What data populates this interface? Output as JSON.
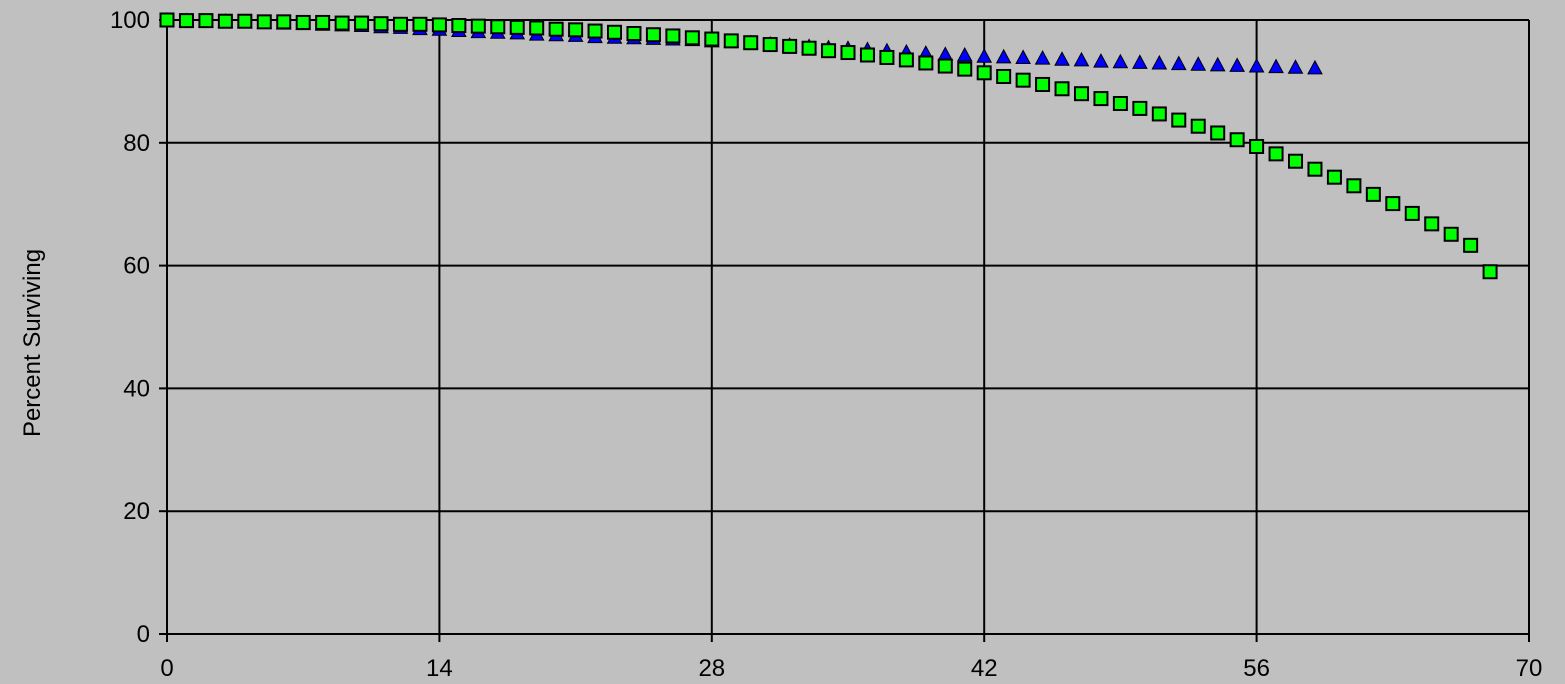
{
  "chart_data": {
    "type": "scatter",
    "title": "",
    "xlabel": "",
    "ylabel": "Percent Surviving",
    "xlim": [
      0,
      70
    ],
    "ylim": [
      0,
      100
    ],
    "x_ticks": [
      "0",
      "14",
      "28",
      "42",
      "56",
      "70"
    ],
    "y_ticks": [
      "0",
      "20",
      "40",
      "60",
      "80",
      "100"
    ],
    "grid": true,
    "background": "#c0c0c0",
    "series": [
      {
        "marker": "triangle",
        "color": "#0000ff",
        "x": [
          0,
          1,
          2,
          3,
          4,
          5,
          6,
          7,
          8,
          9,
          10,
          11,
          12,
          13,
          14,
          15,
          16,
          17,
          18,
          19,
          20,
          21,
          22,
          23,
          24,
          25,
          26,
          27,
          28,
          29,
          30,
          31,
          32,
          33,
          34,
          35,
          36,
          37,
          38,
          39,
          40,
          41,
          42,
          43,
          44,
          45,
          46,
          47,
          48,
          49,
          50,
          51,
          52,
          53,
          54,
          55,
          56,
          57,
          58,
          59
        ],
        "y": [
          100,
          99.9,
          99.8,
          99.8,
          99.7,
          99.6,
          99.5,
          99.4,
          99.3,
          99.2,
          99.1,
          98.9,
          98.8,
          98.6,
          98.5,
          98.3,
          98.1,
          98,
          97.9,
          97.7,
          97.6,
          97.5,
          97.3,
          97.2,
          97.1,
          97,
          96.9,
          96.8,
          96.6,
          96.5,
          96.3,
          96.1,
          95.9,
          95.7,
          95.5,
          95.4,
          95.2,
          95,
          94.8,
          94.6,
          94.4,
          94.3,
          94.1,
          94,
          93.9,
          93.8,
          93.6,
          93.5,
          93.3,
          93.2,
          93.1,
          93,
          92.9,
          92.8,
          92.7,
          92.6,
          92.5,
          92.4,
          92.3,
          92.2
        ]
      },
      {
        "marker": "square",
        "color": "#00ff00",
        "x": [
          0,
          1,
          2,
          3,
          4,
          5,
          6,
          7,
          8,
          9,
          10,
          11,
          12,
          13,
          14,
          15,
          16,
          17,
          18,
          19,
          20,
          21,
          22,
          23,
          24,
          25,
          26,
          27,
          28,
          29,
          30,
          31,
          32,
          33,
          34,
          35,
          36,
          37,
          38,
          39,
          40,
          41,
          42,
          43,
          44,
          45,
          46,
          47,
          48,
          49,
          50,
          51,
          52,
          53,
          54,
          55,
          56,
          57,
          58,
          59,
          60,
          61,
          62,
          63,
          64,
          65,
          66,
          67,
          68
        ],
        "y": [
          100,
          99.9,
          99.9,
          99.8,
          99.8,
          99.7,
          99.7,
          99.6,
          99.6,
          99.5,
          99.5,
          99.4,
          99.3,
          99.3,
          99.2,
          99.1,
          99,
          98.9,
          98.8,
          98.7,
          98.5,
          98.4,
          98.2,
          98,
          97.8,
          97.6,
          97.4,
          97.1,
          96.9,
          96.6,
          96.3,
          96,
          95.7,
          95.4,
          95,
          94.7,
          94.3,
          93.9,
          93.5,
          93,
          92.5,
          92,
          91.4,
          90.8,
          90.2,
          89.5,
          88.8,
          88,
          87.2,
          86.4,
          85.6,
          84.7,
          83.7,
          82.7,
          81.6,
          80.5,
          79.4,
          78.2,
          77,
          75.7,
          74.4,
          73,
          71.6,
          70.1,
          68.5,
          66.8,
          65.1,
          63.3,
          59
        ]
      }
    ]
  }
}
